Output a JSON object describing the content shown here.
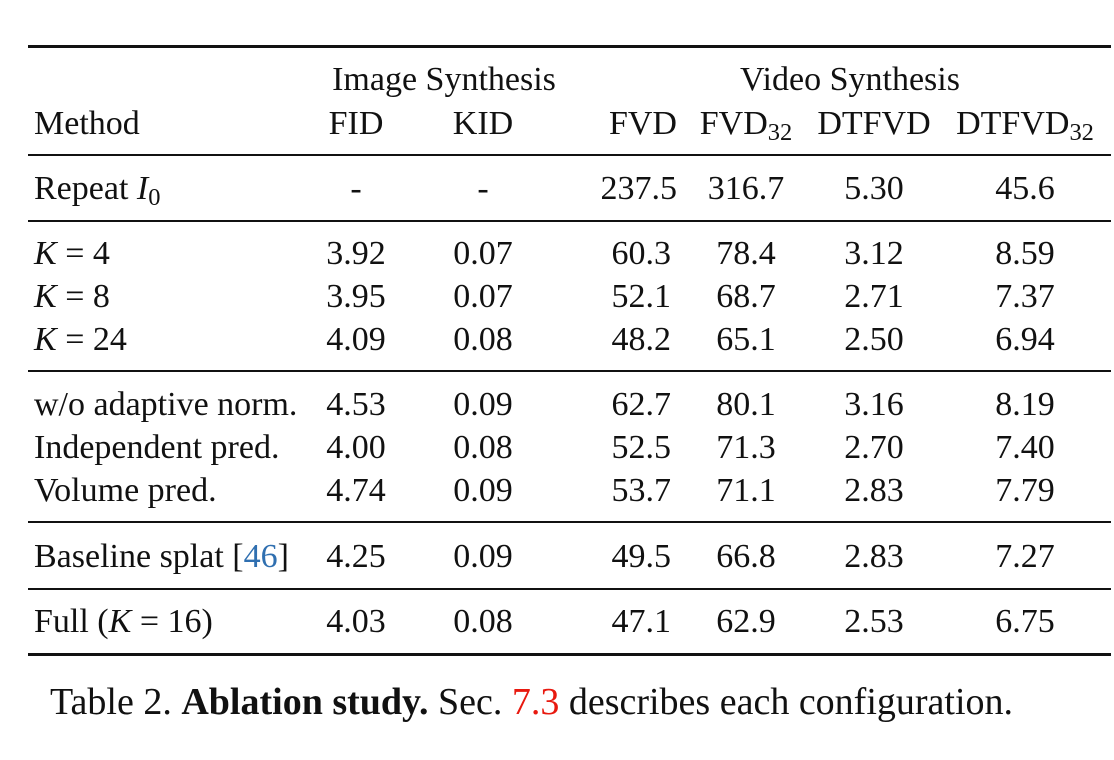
{
  "table": {
    "group_headers": {
      "image": "Image Synthesis",
      "video": "Video Synthesis"
    },
    "columns": {
      "method": "Method",
      "fid": "FID",
      "kid": "KID",
      "fvd": "FVD",
      "fvd32_base": "FVD",
      "fvd32_sub": "32",
      "dtfvd": "DTFVD",
      "dtfvd32_base": "DTFVD",
      "dtfvd32_sub": "32"
    },
    "rows": [
      {
        "method_prefix": "Repeat ",
        "method_math": "I",
        "method_sub": "0",
        "method_suffix": "",
        "fid": "-",
        "kid": "-",
        "fvd": "237.5",
        "fvd32": "316.7",
        "dtfvd": "5.30",
        "dtfvd32": "45.6"
      },
      {
        "method_prefix": "",
        "method_math": "K",
        "method_sub": "",
        "method_suffix": " = 4",
        "fid": "3.92",
        "kid": "0.07",
        "fvd": "60.3",
        "fvd32": "78.4",
        "dtfvd": "3.12",
        "dtfvd32": "8.59"
      },
      {
        "method_prefix": "",
        "method_math": "K",
        "method_sub": "",
        "method_suffix": " = 8",
        "fid": "3.95",
        "kid": "0.07",
        "fvd": "52.1",
        "fvd32": "68.7",
        "dtfvd": "2.71",
        "dtfvd32": "7.37"
      },
      {
        "method_prefix": "",
        "method_math": "K",
        "method_sub": "",
        "method_suffix": " = 24",
        "fid": "4.09",
        "kid": "0.08",
        "fvd": "48.2",
        "fvd32": "65.1",
        "dtfvd": "2.50",
        "dtfvd32": "6.94"
      },
      {
        "method_prefix": "w/o adaptive norm.",
        "method_math": "",
        "method_sub": "",
        "method_suffix": "",
        "fid": "4.53",
        "kid": "0.09",
        "fvd": "62.7",
        "fvd32": "80.1",
        "dtfvd": "3.16",
        "dtfvd32": "8.19"
      },
      {
        "method_prefix": "Independent pred.",
        "method_math": "",
        "method_sub": "",
        "method_suffix": "",
        "fid": "4.00",
        "kid": "0.08",
        "fvd": "52.5",
        "fvd32": "71.3",
        "dtfvd": "2.70",
        "dtfvd32": "7.40"
      },
      {
        "method_prefix": "Volume pred.",
        "method_math": "",
        "method_sub": "",
        "method_suffix": "",
        "fid": "4.74",
        "kid": "0.09",
        "fvd": "53.7",
        "fvd32": "71.1",
        "dtfvd": "2.83",
        "dtfvd32": "7.79"
      },
      {
        "method_prefix": "Baseline splat [",
        "method_cite": "46",
        "method_after_cite": "]",
        "fid": "4.25",
        "kid": "0.09",
        "fvd": "49.5",
        "fvd32": "66.8",
        "dtfvd": "2.83",
        "dtfvd32": "7.27"
      },
      {
        "method_prefix": "Full (",
        "method_math": "K",
        "method_sub": "",
        "method_suffix": " = 16)",
        "fid": "4.03",
        "kid": "0.08",
        "fvd": "47.1",
        "fvd32": "62.9",
        "dtfvd": "2.53",
        "dtfvd32": "6.75"
      }
    ]
  },
  "caption": {
    "label": "Table 2.",
    "title": "Ablation study.",
    "text_before_ref": "Sec.",
    "ref": "7.3",
    "text_after_ref": "describes each configuration."
  },
  "colors": {
    "citation": "#2f6fb0",
    "section_ref": "#e8190f",
    "text": "#111111"
  }
}
